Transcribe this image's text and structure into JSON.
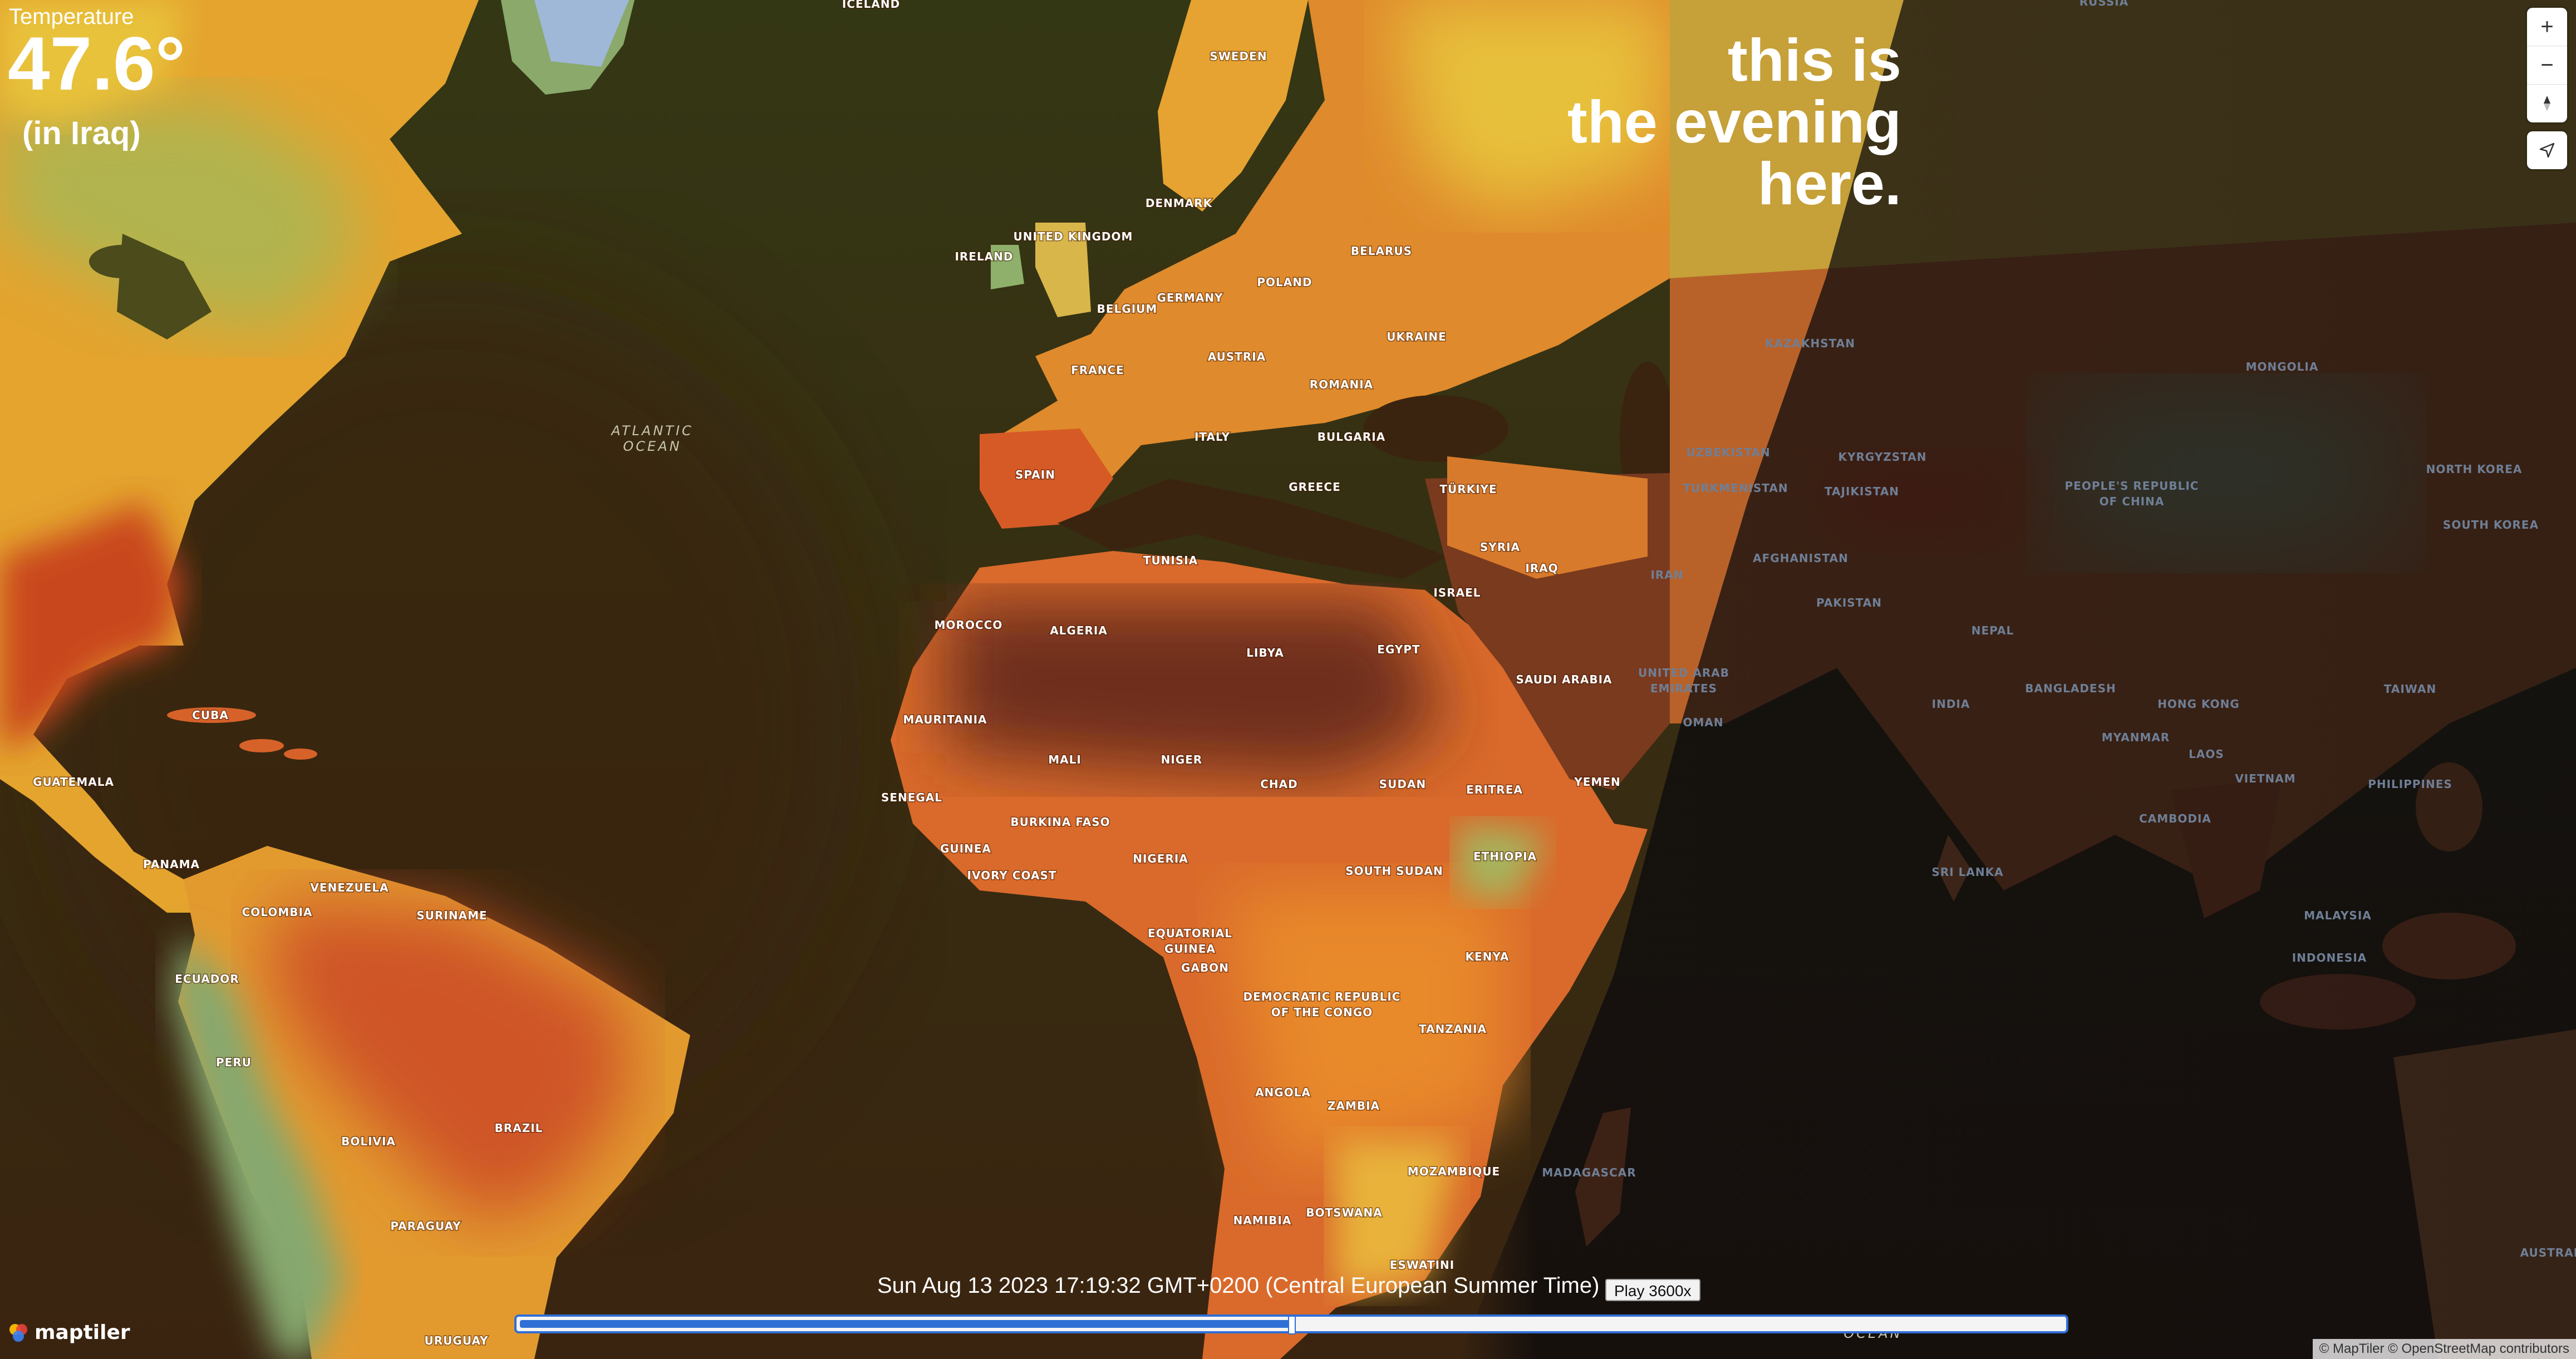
{
  "overlay": {
    "title": "Temperature",
    "temperature": "47.6°",
    "location": "(in Iraq)",
    "annotation_lines": [
      "this is",
      "the evening",
      "here."
    ]
  },
  "map": {
    "country_labels": [
      "ICELAND",
      "SWEDEN",
      "RUSSIA",
      "DENMARK",
      "UNITED KINGDOM",
      "IRELAND",
      "BELARUS",
      "POLAND",
      "GERMANY",
      "BELGIUM",
      "UKRAINE",
      "FRANCE",
      "AUSTRIA",
      "ROMANIA",
      "KAZAKHSTAN",
      "MONGOLIA",
      "ITALY",
      "BULGARIA",
      "UZBEKISTAN",
      "KYRGYZSTAN",
      "SPAIN",
      "GREECE",
      "TÜRKIYE",
      "TURKMENISTAN",
      "TAJIKISTAN",
      "PEOPLE'S REPUBLIC OF CHINA",
      "NORTH KOREA",
      "SOUTH KOREA",
      "TUNISIA",
      "SYRIA",
      "IRAQ",
      "AFGHANISTAN",
      "IRAN",
      "ISRAEL",
      "PAKISTAN",
      "MOROCCO",
      "ALGERIA",
      "LIBYA",
      "EGYPT",
      "NEPAL",
      "UNITED ARAB EMIRATES",
      "SAUDI ARABIA",
      "INDIA",
      "BANGLADESH",
      "TAIWAN",
      "HONG KONG",
      "OMAN",
      "CUBA",
      "MAURITANIA",
      "MALI",
      "NIGER",
      "MYANMAR",
      "LAOS",
      "GUATEMALA",
      "CHAD",
      "SUDAN",
      "ERITREA",
      "YEMEN",
      "VIETNAM",
      "PHILIPPINES",
      "SENEGAL",
      "BURKINA FASO",
      "CAMBODIA",
      "GUINEA",
      "NIGERIA",
      "ETHIOPIA",
      "PANAMA",
      "IVORY COAST",
      "SOUTH SUDAN",
      "SRI LANKA",
      "VENEZUELA",
      "COLOMBIA",
      "SURINAME",
      "EQUATORIAL GUINEA",
      "MALAYSIA",
      "INDONESIA",
      "KENYA",
      "GABON",
      "ECUADOR",
      "DEMOCRATIC REPUBLIC OF THE CONGO",
      "TANZANIA",
      "PERU",
      "ANGOLA",
      "ZAMBIA",
      "BRAZIL",
      "BOLIVIA",
      "MOZAMBIQUE",
      "MADAGASCAR",
      "BOTSWANA",
      "NAMIBIA",
      "PARAGUAY",
      "ESWATINI",
      "URUGUAY",
      "AUSTRALIA",
      "ATLANTIC OCEAN",
      "OCEAN"
    ]
  },
  "controls": {
    "zoom_in": "+",
    "zoom_out": "−",
    "compass": "compass-icon",
    "geolocate": "navigation-arrow-icon"
  },
  "timeline": {
    "datetime": "Sun Aug 13 2023 17:19:32 GMT+0200 (Central European Summer Time)",
    "play_button": "Play 3600x",
    "progress": 0.5
  },
  "branding": {
    "logo": "maptiler",
    "attribution": "© MapTiler © OpenStreetMap contributors"
  },
  "colors": {
    "hot": "#6e2f1b",
    "warm": "#d9582a",
    "mild": "#f3b534",
    "cool": "#7fae6f",
    "night_overlay": "#0c0c10",
    "ocean": "#3b3a15",
    "slider_accent": "#2f6fd6"
  }
}
